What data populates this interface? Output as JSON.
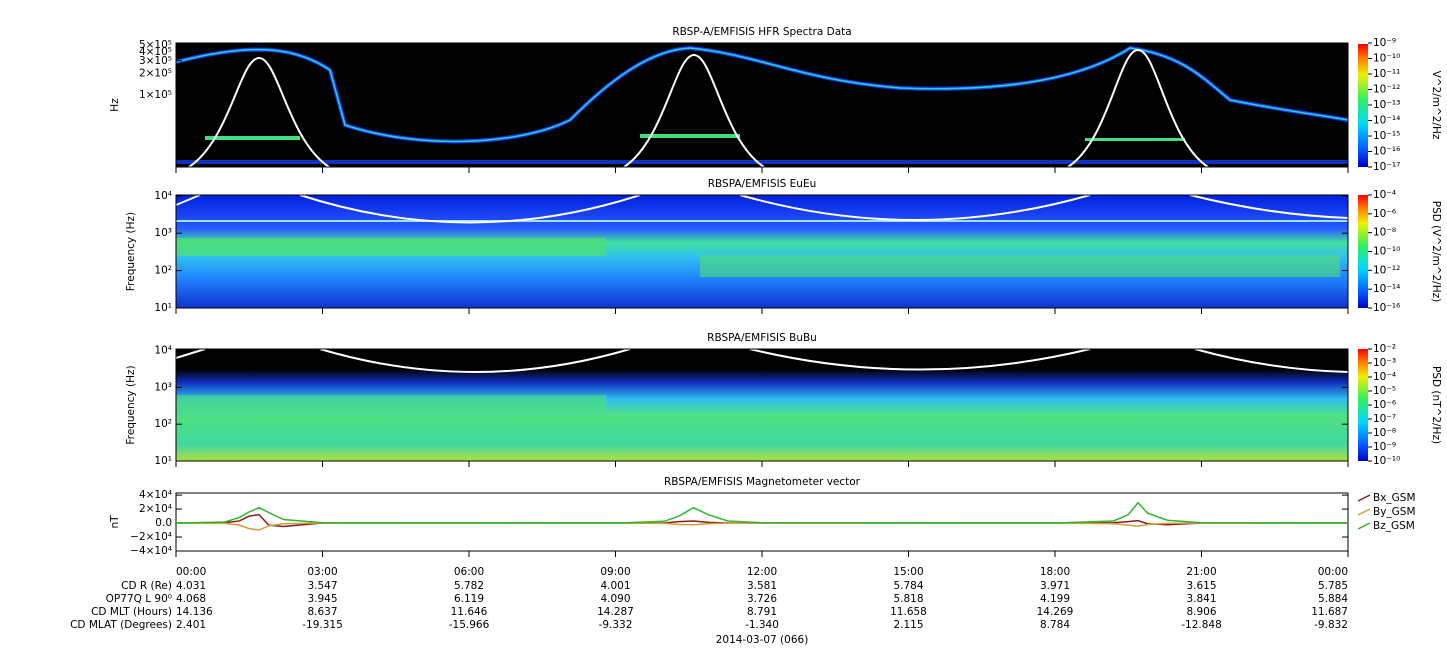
{
  "chart_data": [
    {
      "type": "spectrogram",
      "title": "RBSP-A/EMFISIS  HFR Spectra Data",
      "ylabel": "Hz",
      "log_y": true,
      "ylim": [
        10000,
        530000
      ],
      "yticks": [
        {
          "value": 100000,
          "label": "1×10⁵"
        },
        {
          "value": 200000,
          "label": "2×10⁵"
        },
        {
          "value": 300000,
          "label": "3×10⁵"
        },
        {
          "value": 400000,
          "label": "4×10⁵"
        },
        {
          "value": 500000,
          "label": "5×10⁵"
        }
      ],
      "xlim": [
        0,
        24
      ],
      "xticks": [
        0,
        3,
        6,
        9,
        12,
        15,
        18,
        21,
        24
      ],
      "colorbar_label": "V^2/m^2/Hz",
      "zlim": [
        1e-17,
        1e-09
      ],
      "zticks": [
        {
          "value": 1e-09,
          "label": "10⁻⁹"
        },
        {
          "value": 1e-10,
          "label": "10⁻¹⁰"
        },
        {
          "value": 1e-11,
          "label": "10⁻¹¹"
        },
        {
          "value": 1e-12,
          "label": "10⁻¹²"
        },
        {
          "value": 1e-13,
          "label": "10⁻¹³"
        },
        {
          "value": 1e-14,
          "label": "10⁻¹⁴"
        },
        {
          "value": 1e-15,
          "label": "10⁻¹⁵"
        },
        {
          "value": 1e-16,
          "label": "10⁻¹⁶"
        },
        {
          "value": 1e-17,
          "label": "10⁻¹⁷"
        }
      ]
    },
    {
      "type": "spectrogram",
      "title": "RBSPA/EMFISIS  EuEu",
      "ylabel": "Frequency (Hz)",
      "log_y": true,
      "ylim": [
        10,
        10500
      ],
      "yticks": [
        {
          "value": 10,
          "label": "10¹"
        },
        {
          "value": 100,
          "label": "10²"
        },
        {
          "value": 1000,
          "label": "10³"
        },
        {
          "value": 10000,
          "label": "10⁴"
        }
      ],
      "xlim": [
        0,
        24
      ],
      "xticks": [
        0,
        3,
        6,
        9,
        12,
        15,
        18,
        21,
        24
      ],
      "colorbar_label": "PSD (V^2/m^2/Hz)",
      "zlim": [
        1e-16,
        0.0001
      ],
      "zticks": [
        {
          "value": 0.0001,
          "label": "10⁻⁴"
        },
        {
          "value": 1e-06,
          "label": "10⁻⁶"
        },
        {
          "value": 1e-08,
          "label": "10⁻⁸"
        },
        {
          "value": 1e-10,
          "label": "10⁻¹⁰"
        },
        {
          "value": 1e-12,
          "label": "10⁻¹²"
        },
        {
          "value": 1e-14,
          "label": "10⁻¹⁴"
        },
        {
          "value": 1e-16,
          "label": "10⁻¹⁶"
        }
      ]
    },
    {
      "type": "spectrogram",
      "title": "RBSPA/EMFISIS  BuBu",
      "ylabel": "Frequency (Hz)",
      "log_y": true,
      "ylim": [
        10,
        11000
      ],
      "yticks": [
        {
          "value": 10,
          "label": "10¹"
        },
        {
          "value": 100,
          "label": "10²"
        },
        {
          "value": 1000,
          "label": "10³"
        },
        {
          "value": 10000,
          "label": "10⁴"
        }
      ],
      "xlim": [
        0,
        24
      ],
      "xticks": [
        0,
        3,
        6,
        9,
        12,
        15,
        18,
        21,
        24
      ],
      "colorbar_label": "PSD (nT^2/Hz)",
      "zlim": [
        1e-10,
        0.01
      ],
      "zticks": [
        {
          "value": 0.01,
          "label": "10⁻²"
        },
        {
          "value": 0.001,
          "label": "10⁻³"
        },
        {
          "value": 0.0001,
          "label": "10⁻⁴"
        },
        {
          "value": 1e-05,
          "label": "10⁻⁵"
        },
        {
          "value": 1e-06,
          "label": "10⁻⁶"
        },
        {
          "value": 1e-07,
          "label": "10⁻⁷"
        },
        {
          "value": 1e-08,
          "label": "10⁻⁸"
        },
        {
          "value": 1e-09,
          "label": "10⁻⁹"
        },
        {
          "value": 1e-10,
          "label": "10⁻¹⁰"
        }
      ]
    },
    {
      "type": "line",
      "title": "RBSPA/EMFISIS  Magnetometer vector",
      "ylabel": "nT",
      "ylim": [
        -40000,
        43000
      ],
      "yticks": [
        {
          "value": 40000,
          "label": "4×10⁴"
        },
        {
          "value": 20000,
          "label": "2×10⁴"
        },
        {
          "value": 0,
          "label": "0.0"
        },
        {
          "value": -20000,
          "label": "−2×10⁴"
        },
        {
          "value": -40000,
          "label": "−4×10⁴"
        }
      ],
      "xlim": [
        0,
        24
      ],
      "xticks": [
        {
          "value": 0,
          "label": "00:00"
        },
        {
          "value": 3,
          "label": "03:00"
        },
        {
          "value": 6,
          "label": "06:00"
        },
        {
          "value": 9,
          "label": "09:00"
        },
        {
          "value": 12,
          "label": "12:00"
        },
        {
          "value": 15,
          "label": "15:00"
        },
        {
          "value": 18,
          "label": "18:00"
        },
        {
          "value": 21,
          "label": "21:00"
        },
        {
          "value": 24,
          "label": "00:00"
        }
      ],
      "x": [
        0,
        1,
        1.3,
        1.5,
        1.7,
        1.9,
        2.2,
        3,
        9,
        10,
        10.3,
        10.6,
        10.9,
        11.3,
        12,
        18,
        19.2,
        19.5,
        19.7,
        19.9,
        20.3,
        21,
        24
      ],
      "series": [
        {
          "name": "Bx_GSM",
          "color": "#8b1a1a",
          "values": [
            0,
            500,
            3000,
            10000,
            12000,
            -3000,
            -5000,
            0,
            0,
            0,
            2000,
            3000,
            1000,
            0,
            0,
            0,
            500,
            2000,
            3500,
            -1000,
            -2500,
            0,
            0
          ]
        },
        {
          "name": "By_GSM",
          "color": "#c8a040",
          "values": [
            0,
            -500,
            -3000,
            -8000,
            -10000,
            -4000,
            -1000,
            0,
            0,
            -500,
            -2000,
            -2500,
            -1000,
            0,
            0,
            0,
            -1000,
            -3000,
            -4500,
            -2000,
            -500,
            0,
            0
          ]
        },
        {
          "name": "Bz_GSM",
          "color": "#2eb82e",
          "values": [
            0,
            1500,
            8000,
            16000,
            22000,
            15000,
            5000,
            500,
            0,
            2500,
            10000,
            22000,
            12000,
            3000,
            500,
            0,
            3000,
            12000,
            29000,
            14000,
            4000,
            500,
            0
          ]
        }
      ]
    }
  ],
  "ephemeris": {
    "rows": [
      {
        "label": "CD R (Re)",
        "values": [
          "4.031",
          "3.547",
          "5.782",
          "4.001",
          "3.581",
          "5.784",
          "3.971",
          "3.615",
          "5.785"
        ]
      },
      {
        "label": "OP77Q L 90⁰",
        "values": [
          "4.068",
          "3.945",
          "6.119",
          "4.090",
          "3.726",
          "5.818",
          "4.199",
          "3.841",
          "5.884"
        ]
      },
      {
        "label": "CD MLT (Hours)",
        "values": [
          "14.136",
          "8.637",
          "11.646",
          "14.287",
          "8.791",
          "11.658",
          "14.269",
          "8.906",
          "11.687"
        ]
      },
      {
        "label": "CD MLAT (Degrees)",
        "values": [
          "2.401",
          "-19.315",
          "-15.966",
          "-9.332",
          "-1.340",
          "2.115",
          "8.784",
          "-12.848",
          "-9.832"
        ]
      }
    ]
  },
  "date_label": "2014-03-07 (066)"
}
